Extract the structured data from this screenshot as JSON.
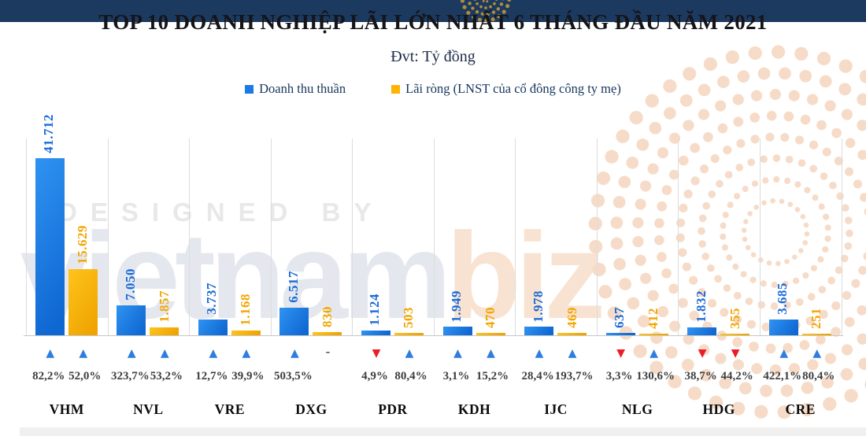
{
  "header": {
    "title": "TOP 10 DOANH NGHIỆP LÃI LỚN NHẤT 6 THÁNG ĐẦU NĂM 2021",
    "subtitle": "Đvt: Tỷ đồng"
  },
  "legend": {
    "revenue": {
      "label": "Doanh thu thuần",
      "color": "#1b7be4"
    },
    "profit": {
      "label": "Lãi ròng (LNST của cổ đông công ty mẹ)",
      "color": "#ffb400"
    }
  },
  "watermark": {
    "designed_by": "DESIGNED BY",
    "brand_main": "vietnam",
    "brand_accent": "biz"
  },
  "chart_data": {
    "type": "bar",
    "title": "TOP 10 DOANH NGHIỆP LÃI LỚN NHẤT 6 THÁNG ĐẦU NĂM 2021",
    "unit_label": "Đvt: Tỷ đồng",
    "legend_position": "top",
    "grid": "vertical-separators-only",
    "ylim": [
      0,
      42000
    ],
    "categories": [
      "VHM",
      "NVL",
      "VRE",
      "DXG",
      "PDR",
      "KDH",
      "IJC",
      "NLG",
      "HDG",
      "CRE"
    ],
    "series": [
      {
        "name": "Doanh thu thuần",
        "color": "#1b7be4",
        "values": [
          41712,
          7050,
          3737,
          6517,
          1124,
          1949,
          1978,
          637,
          1832,
          3685
        ],
        "labels": [
          "41.712",
          "7.050",
          "3.737",
          "6.517",
          "1.124",
          "1.949",
          "1.978",
          "637",
          "1.832",
          "3.685"
        ]
      },
      {
        "name": "Lãi ròng (LNST của cổ đông công ty mẹ)",
        "color": "#ffb400",
        "values": [
          15629,
          1857,
          1168,
          830,
          503,
          470,
          469,
          412,
          355,
          251
        ],
        "labels": [
          "15.629",
          "1.857",
          "1.168",
          "830",
          "503",
          "470",
          "469",
          "412",
          "355",
          "251"
        ]
      }
    ],
    "yoy_change": [
      {
        "ticker": "VHM",
        "revenue": {
          "direction": "up",
          "label": "82,2%"
        },
        "profit": {
          "direction": "up",
          "label": "52,0%"
        }
      },
      {
        "ticker": "NVL",
        "revenue": {
          "direction": "up",
          "label": "323,7%"
        },
        "profit": {
          "direction": "up",
          "label": "53,2%"
        }
      },
      {
        "ticker": "VRE",
        "revenue": {
          "direction": "up",
          "label": "12,7%"
        },
        "profit": {
          "direction": "up",
          "label": "39,9%"
        }
      },
      {
        "ticker": "DXG",
        "revenue": {
          "direction": "up",
          "label": "503,5%"
        },
        "profit": {
          "direction": "dash",
          "label": ""
        }
      },
      {
        "ticker": "PDR",
        "revenue": {
          "direction": "down",
          "label": "4,9%"
        },
        "profit": {
          "direction": "up",
          "label": "80,4%"
        }
      },
      {
        "ticker": "KDH",
        "revenue": {
          "direction": "up",
          "label": "3,1%"
        },
        "profit": {
          "direction": "up",
          "label": "15,2%"
        }
      },
      {
        "ticker": "IJC",
        "revenue": {
          "direction": "up",
          "label": "28,4%"
        },
        "profit": {
          "direction": "up",
          "label": "193,7%"
        }
      },
      {
        "ticker": "NLG",
        "revenue": {
          "direction": "down",
          "label": "3,3%"
        },
        "profit": {
          "direction": "up",
          "label": "130,6%"
        }
      },
      {
        "ticker": "HDG",
        "revenue": {
          "direction": "down",
          "label": "38,7%"
        },
        "profit": {
          "direction": "down",
          "label": "44,2%"
        }
      },
      {
        "ticker": "CRE",
        "revenue": {
          "direction": "up",
          "label": "422,1%"
        },
        "profit": {
          "direction": "up",
          "label": "80,4%"
        }
      }
    ],
    "glyphs": {
      "up": "▲",
      "down": "▼",
      "dash": "-"
    },
    "colors": {
      "up": "#2e7de0",
      "down": "#ee1c25",
      "revenue_bar": "#1b7be4",
      "profit_bar": "#ffb400",
      "top_bar": "#1c3a5f"
    }
  }
}
